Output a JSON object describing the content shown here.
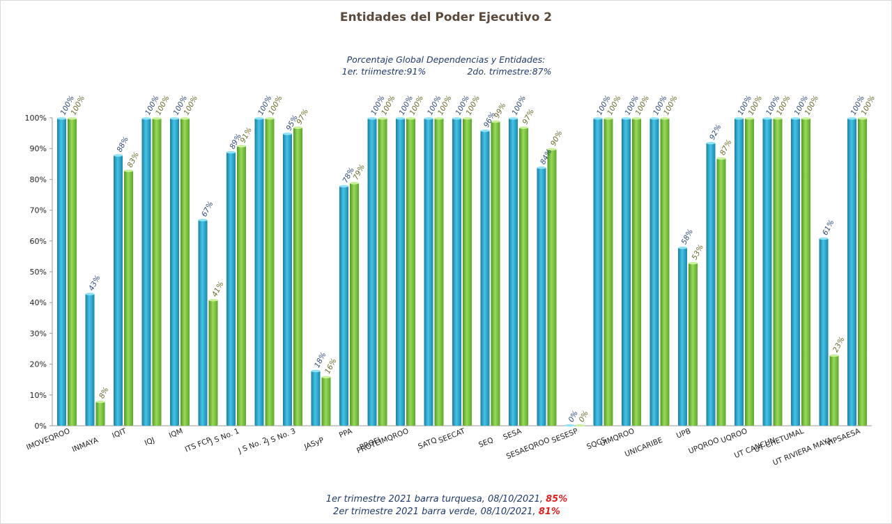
{
  "chart_data": {
    "type": "bar",
    "title": "Entidades del Poder Ejecutivo 2",
    "subtitle_lines": [
      "Porcentaje Global  Dependencias y Entidades:",
      "1er. triimestre:91%",
      "2do. trimestre:87%"
    ],
    "categories": [
      "IMOVEQROO",
      "INMAYA",
      "IQIT",
      "IQJ",
      "IQM",
      "ITS FCP",
      "J S No. 1",
      "J S No. 2",
      "J S No. 3",
      "JASyP",
      "PPA",
      "PROFI",
      "PROTEIMQROO",
      "SATQ",
      "SEECAT",
      "SEQ",
      "SESA",
      "SESAEQROO",
      "SESESP",
      "SQCS",
      "UIMQROO",
      "UNICARIBE",
      "UPB",
      "UPQROO",
      "UQROO",
      "UT CANCUN",
      "UT CHETUMAL",
      "UT RIVIERA MAYA",
      "VIPSAESA"
    ],
    "series": [
      {
        "values": [
          100,
          43,
          88,
          100,
          100,
          67,
          89,
          100,
          95,
          18,
          78,
          100,
          100,
          100,
          100,
          96,
          100,
          84,
          0,
          100,
          100,
          100,
          58,
          92,
          100,
          100,
          100,
          61,
          100
        ],
        "labels": [
          "100%",
          "43%",
          "88%",
          "100%",
          "100%",
          "67%",
          "89%",
          "100%",
          "95%",
          "18%",
          "78%",
          "100%",
          "100%",
          "100%",
          "100%",
          "96%",
          "100%",
          "84%",
          "0%",
          "100%",
          "100%",
          "100%",
          "58%",
          "92%",
          "100%",
          "100%",
          "100%",
          "61%",
          "100%"
        ]
      },
      {
        "values": [
          100,
          8,
          83,
          100,
          100,
          41,
          91,
          100,
          97,
          16,
          79,
          100,
          100,
          100,
          100,
          99,
          97,
          90,
          0,
          100,
          100,
          100,
          53,
          87,
          100,
          100,
          100,
          23,
          100
        ],
        "labels": [
          "100%",
          "8%",
          "83%",
          "100%",
          "100%",
          "41%",
          "91%",
          "100%",
          "97%",
          "16%",
          "79%",
          "100%",
          "100%",
          "100%",
          "100%",
          "99%",
          "97%",
          "90%",
          "0%",
          "100%",
          "100%",
          "100%",
          "53%",
          "87%",
          "100%",
          "100%",
          "100%",
          "23%",
          "100%"
        ]
      }
    ],
    "ylim": [
      0,
      100
    ],
    "yticks": [
      "0%",
      "10%",
      "20%",
      "30%",
      "40%",
      "50%",
      "60%",
      "70%",
      "80%",
      "90%",
      "100%"
    ],
    "grid": false,
    "colors": {
      "series1": "#2aa7c9",
      "series2": "#7ac142"
    }
  },
  "footer": {
    "line1_text": "1er trimestre  2021 barra turquesa,  08/10/2021, ",
    "line1_value": "85%",
    "line2_text": "2er trimestre  2021 barra verde,  08/10/2021, ",
    "line2_value": "81%"
  }
}
